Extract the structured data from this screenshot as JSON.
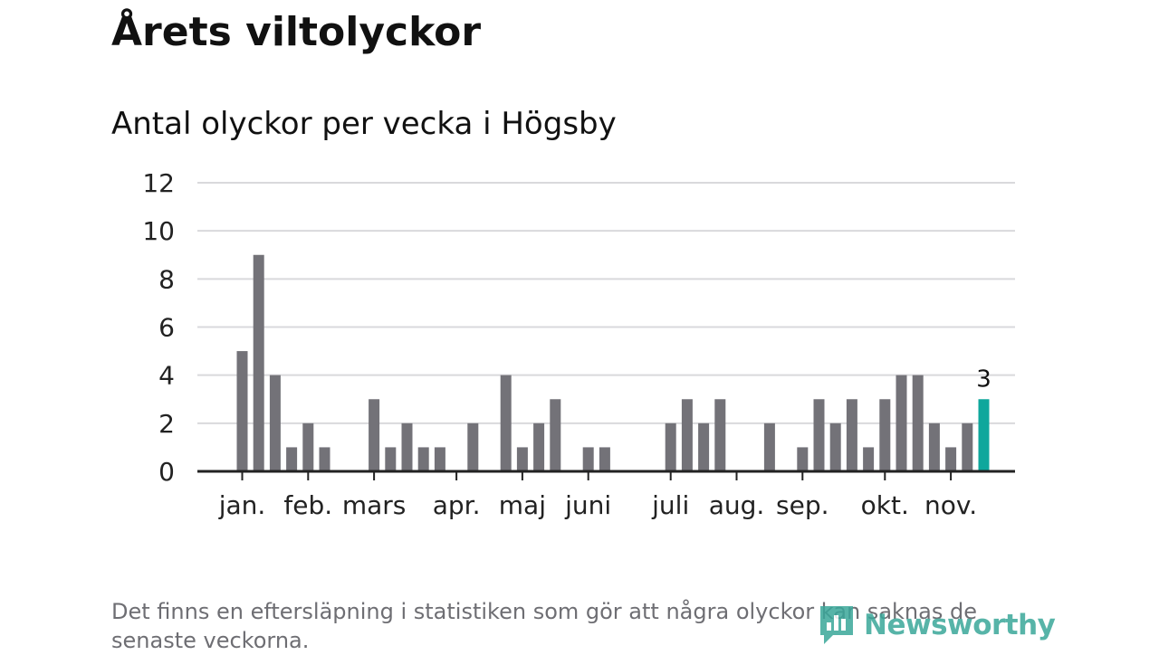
{
  "header": {
    "title": "Årets viltolyckor",
    "subtitle": "Antal olyckor per vecka i Högsby"
  },
  "footnote": "Det finns en eftersläpning i statistiken som gör att några olyckor kan saknas de senaste veckorna.",
  "logo": {
    "text": "Newsworthy",
    "color": "#3aa79a"
  },
  "colors": {
    "bar": "#737278",
    "highlight": "#0fa79c",
    "grid": "#d9d9dc",
    "axis": "#222222"
  },
  "chart_data": {
    "type": "bar",
    "title": "Antal olyckor per vecka i Högsby",
    "x_unit": "week",
    "ylim": [
      0,
      12
    ],
    "yticks": [
      0,
      2,
      4,
      6,
      8,
      10,
      12
    ],
    "grid": true,
    "x": [
      1,
      2,
      3,
      4,
      5,
      6,
      7,
      8,
      9,
      10,
      11,
      12,
      13,
      14,
      15,
      16,
      17,
      18,
      19,
      20,
      21,
      22,
      23,
      24,
      25,
      26,
      27,
      28,
      29,
      30,
      31,
      32,
      33,
      34,
      35,
      36,
      37,
      38,
      39,
      40,
      41,
      42,
      43,
      44,
      45,
      46
    ],
    "values": [
      5,
      9,
      4,
      1,
      2,
      1,
      0,
      0,
      3,
      1,
      2,
      1,
      1,
      0,
      2,
      0,
      4,
      1,
      2,
      3,
      0,
      1,
      1,
      0,
      0,
      0,
      2,
      3,
      2,
      3,
      0,
      0,
      2,
      0,
      1,
      3,
      2,
      3,
      1,
      3,
      4,
      4,
      2,
      1,
      2,
      3
    ],
    "highlight_index": 45,
    "highlight_label": "3",
    "xticks": [
      {
        "label": "jan.",
        "week": 1
      },
      {
        "label": "feb.",
        "week": 5
      },
      {
        "label": "mars",
        "week": 9
      },
      {
        "label": "apr.",
        "week": 14
      },
      {
        "label": "maj",
        "week": 18
      },
      {
        "label": "juni",
        "week": 22
      },
      {
        "label": "juli",
        "week": 27
      },
      {
        "label": "aug.",
        "week": 31
      },
      {
        "label": "sep.",
        "week": 35
      },
      {
        "label": "okt.",
        "week": 40
      },
      {
        "label": "nov.",
        "week": 44
      }
    ]
  }
}
